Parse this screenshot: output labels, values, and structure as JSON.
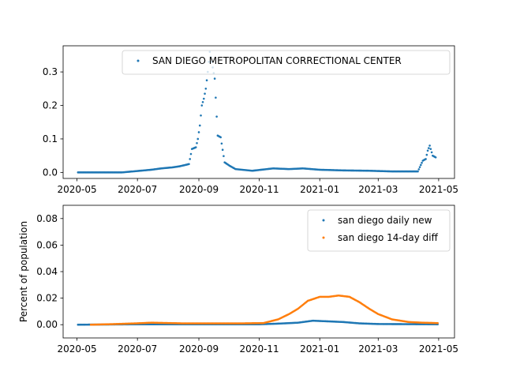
{
  "chart_data": [
    {
      "type": "scatter",
      "title": "",
      "xlabel": "",
      "ylabel": "",
      "x_range": [
        "2020-04-17",
        "2021-05-17"
      ],
      "ylim": [
        -0.018,
        0.378
      ],
      "yticks": [
        "0.0",
        "0.1",
        "0.2",
        "0.3"
      ],
      "xticks": [
        "2020-05",
        "2020-07",
        "2020-09",
        "2020-11",
        "2021-01",
        "2021-03",
        "2021-05"
      ],
      "grid": false,
      "legend": "top-right",
      "series": [
        {
          "name": "SAN DIEGO METROPOLITAN CORRECTIONAL CENTER",
          "color": "#1f77b4",
          "points": [
            [
              "2020-05-02",
              0.0
            ],
            [
              "2020-06-15",
              0.0
            ],
            [
              "2020-06-30",
              0.004
            ],
            [
              "2020-07-15",
              0.008
            ],
            [
              "2020-07-25",
              0.012
            ],
            [
              "2020-08-05",
              0.015
            ],
            [
              "2020-08-12",
              0.018
            ],
            [
              "2020-08-18",
              0.022
            ],
            [
              "2020-08-22",
              0.025
            ],
            [
              "2020-08-25",
              0.07
            ],
            [
              "2020-08-29",
              0.075
            ],
            [
              "2020-08-31",
              0.1
            ],
            [
              "2020-09-02",
              0.14
            ],
            [
              "2020-09-04",
              0.2
            ],
            [
              "2020-09-06",
              0.22
            ],
            [
              "2020-09-08",
              0.25
            ],
            [
              "2020-09-10",
              0.3
            ],
            [
              "2020-09-12",
              0.36
            ],
            [
              "2020-09-14",
              0.33
            ],
            [
              "2020-09-17",
              0.28
            ],
            [
              "2020-09-20",
              0.11
            ],
            [
              "2020-09-23",
              0.105
            ],
            [
              "2020-09-27",
              0.03
            ],
            [
              "2020-10-02",
              0.02
            ],
            [
              "2020-10-08",
              0.01
            ],
            [
              "2020-10-25",
              0.005
            ],
            [
              "2020-11-15",
              0.012
            ],
            [
              "2020-12-01",
              0.01
            ],
            [
              "2020-12-15",
              0.012
            ],
            [
              "2021-01-01",
              0.008
            ],
            [
              "2021-01-25",
              0.006
            ],
            [
              "2021-02-20",
              0.005
            ],
            [
              "2021-03-15",
              0.003
            ],
            [
              "2021-04-10",
              0.003
            ],
            [
              "2021-04-15",
              0.035
            ],
            [
              "2021-04-18",
              0.04
            ],
            [
              "2021-04-20",
              0.065
            ],
            [
              "2021-04-22",
              0.08
            ],
            [
              "2021-04-25",
              0.05
            ],
            [
              "2021-04-28",
              0.045
            ]
          ]
        }
      ]
    },
    {
      "type": "scatter",
      "title": "",
      "xlabel": "",
      "ylabel": "Percent of population",
      "x_range": [
        "2020-04-17",
        "2021-05-17"
      ],
      "ylim": [
        -0.01,
        0.09
      ],
      "yticks": [
        "0.00",
        "0.02",
        "0.04",
        "0.06",
        "0.08"
      ],
      "xticks": [
        "2020-05",
        "2020-07",
        "2020-09",
        "2020-11",
        "2021-01",
        "2021-03",
        "2021-05"
      ],
      "grid": false,
      "legend": "top-right",
      "series": [
        {
          "name": "san diego daily new",
          "color": "#1f77b4",
          "points": [
            [
              "2020-05-02",
              0.0
            ],
            [
              "2020-07-01",
              0.0003
            ],
            [
              "2020-09-01",
              0.0003
            ],
            [
              "2020-11-01",
              0.0003
            ],
            [
              "2020-11-20",
              0.0008
            ],
            [
              "2020-12-10",
              0.0015
            ],
            [
              "2020-12-25",
              0.003
            ],
            [
              "2021-01-10",
              0.0025
            ],
            [
              "2021-01-25",
              0.002
            ],
            [
              "2021-02-10",
              0.001
            ],
            [
              "2021-03-01",
              0.0005
            ],
            [
              "2021-04-01",
              0.0004
            ],
            [
              "2021-04-30",
              0.0003
            ]
          ]
        },
        {
          "name": "san diego 14-day diff",
          "color": "#ff7f0e",
          "points": [
            [
              "2020-05-15",
              0.0
            ],
            [
              "2020-06-10",
              0.0005
            ],
            [
              "2020-06-30",
              0.001
            ],
            [
              "2020-07-15",
              0.0015
            ],
            [
              "2020-08-15",
              0.001
            ],
            [
              "2020-09-15",
              0.001
            ],
            [
              "2020-10-15",
              0.001
            ],
            [
              "2020-11-05",
              0.0012
            ],
            [
              "2020-11-20",
              0.004
            ],
            [
              "2020-12-01",
              0.008
            ],
            [
              "2020-12-10",
              0.012
            ],
            [
              "2020-12-20",
              0.018
            ],
            [
              "2021-01-01",
              0.021
            ],
            [
              "2021-01-10",
              0.021
            ],
            [
              "2021-01-20",
              0.022
            ],
            [
              "2021-01-31",
              0.021
            ],
            [
              "2021-02-10",
              0.017
            ],
            [
              "2021-02-20",
              0.012
            ],
            [
              "2021-03-01",
              0.008
            ],
            [
              "2021-03-15",
              0.004
            ],
            [
              "2021-04-01",
              0.002
            ],
            [
              "2021-04-15",
              0.0015
            ],
            [
              "2021-04-30",
              0.0012
            ]
          ]
        }
      ]
    }
  ]
}
